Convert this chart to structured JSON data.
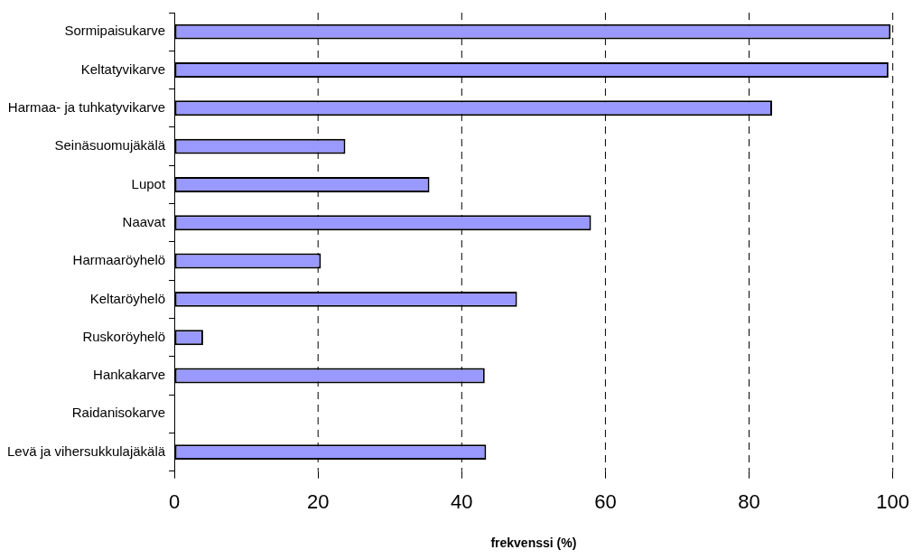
{
  "chart_data": {
    "type": "bar",
    "orientation": "horizontal",
    "xlabel": "frekvenssi (%)",
    "categories": [
      "Sormipaisukarve",
      "Keltatyvikarve",
      "Harmaa- ja tuhkatyvikarve",
      "Seinäsuomujäkälä",
      "Lupot",
      "Naavat",
      "Harmaaröyhelö",
      "Keltaröyhelö",
      "Ruskoröyhelö",
      "Hankakarve",
      "Raidanisokarve",
      "Levä ja vihersukkulajäkälä"
    ],
    "values": [
      99.7,
      99.4,
      83.2,
      23.8,
      35.5,
      58.0,
      20.4,
      47.7,
      4.0,
      43.2,
      0,
      43.4
    ],
    "color": "#9999ff",
    "xlim": [
      0,
      100
    ],
    "xticks": [
      0,
      20,
      40,
      60,
      80,
      100
    ],
    "grid": "x",
    "legend": false
  }
}
